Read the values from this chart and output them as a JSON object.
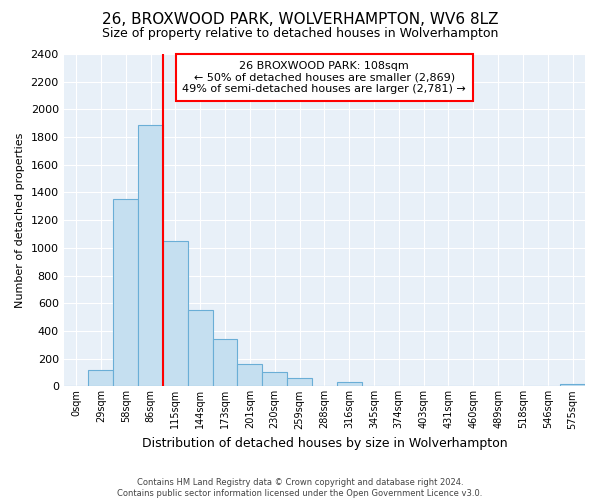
{
  "title": "26, BROXWOOD PARK, WOLVERHAMPTON, WV6 8LZ",
  "subtitle": "Size of property relative to detached houses in Wolverhampton",
  "xlabel": "Distribution of detached houses by size in Wolverhampton",
  "ylabel": "Number of detached properties",
  "bar_labels": [
    "0sqm",
    "29sqm",
    "58sqm",
    "86sqm",
    "115sqm",
    "144sqm",
    "173sqm",
    "201sqm",
    "230sqm",
    "259sqm",
    "288sqm",
    "316sqm",
    "345sqm",
    "374sqm",
    "403sqm",
    "431sqm",
    "460sqm",
    "489sqm",
    "518sqm",
    "546sqm",
    "575sqm"
  ],
  "bar_values": [
    0,
    120,
    1350,
    1890,
    1050,
    550,
    340,
    160,
    105,
    60,
    0,
    30,
    0,
    0,
    0,
    0,
    0,
    0,
    0,
    0,
    15
  ],
  "bar_color": "#c5dff0",
  "bar_edge_color": "#6aaed6",
  "vline_x": 3.5,
  "vline_color": "red",
  "ylim": [
    0,
    2400
  ],
  "yticks": [
    0,
    200,
    400,
    600,
    800,
    1000,
    1200,
    1400,
    1600,
    1800,
    2000,
    2200,
    2400
  ],
  "annotation_title": "26 BROXWOOD PARK: 108sqm",
  "annotation_line1": "← 50% of detached houses are smaller (2,869)",
  "annotation_line2": "49% of semi-detached houses are larger (2,781) →",
  "footer_line1": "Contains HM Land Registry data © Crown copyright and database right 2024.",
  "footer_line2": "Contains public sector information licensed under the Open Government Licence v3.0.",
  "bg_color": "#ffffff",
  "plot_bg_color": "#e8f0f8",
  "grid_color": "#ffffff"
}
